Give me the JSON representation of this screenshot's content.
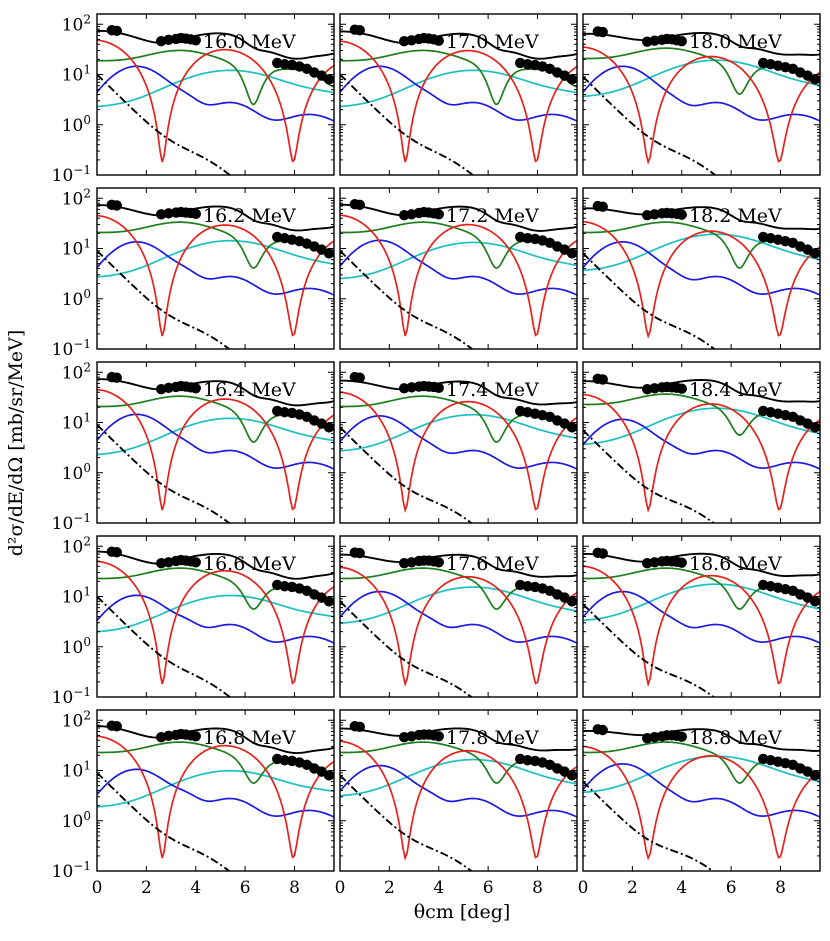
{
  "chart_data": {
    "type": "line",
    "layout": "grid of 5 rows x 3 columns",
    "xlabel": "θcm [deg]",
    "ylabel": "d²σ/dE/dΩ [mb/sr/MeV]",
    "xlim": [
      0,
      9.6
    ],
    "ylim": [
      0.1,
      160
    ],
    "yscale": "log",
    "x_ticks": [
      "0",
      "2",
      "4",
      "6",
      "8"
    ],
    "y_ticks": [
      {
        "base": "10",
        "exp": "2",
        "value": 100
      },
      {
        "base": "10",
        "exp": "1",
        "value": 10
      },
      {
        "base": "10",
        "exp": "0",
        "value": 1
      },
      {
        "base": "10",
        "exp": "−1",
        "value": 0.1
      }
    ],
    "colors": {
      "total": "#000000",
      "l0": "#e8211b",
      "l1": "#1a1ae0",
      "l2": "#1d7e1d",
      "l3": "#1cbfc2",
      "dashdot": "#000000"
    },
    "panels": [
      {
        "energy": "16.0 MeV",
        "energy_value": 16.0,
        "series": {
          "l0": 48,
          "l1": 14,
          "l2": 18,
          "l3": 2.2,
          "dashdot": 10,
          "l1_peak": 1.6
        },
        "points": [
          [
            0.6,
            76
          ],
          [
            0.8,
            74
          ],
          [
            2.6,
            46
          ],
          [
            2.9,
            49
          ],
          [
            3.2,
            51
          ],
          [
            3.4,
            53
          ],
          [
            3.6,
            52
          ],
          [
            3.8,
            50
          ],
          [
            4.0,
            48
          ],
          [
            7.3,
            17
          ],
          [
            7.6,
            16
          ],
          [
            7.9,
            15.5
          ],
          [
            8.2,
            14.5
          ],
          [
            8.5,
            13
          ],
          [
            8.8,
            11
          ],
          [
            9.1,
            9.5
          ],
          [
            9.4,
            8
          ]
        ]
      },
      {
        "energy": "17.0 MeV",
        "energy_value": 17.0,
        "series": {
          "l0": 46,
          "l1": 14,
          "l2": 18,
          "l3": 2.2,
          "dashdot": 10,
          "l1_peak": 1.6
        },
        "points": [
          [
            0.6,
            78
          ],
          [
            0.8,
            76
          ],
          [
            2.6,
            46
          ],
          [
            2.9,
            48
          ],
          [
            3.2,
            51
          ],
          [
            3.4,
            53
          ],
          [
            3.6,
            52
          ],
          [
            3.8,
            50
          ],
          [
            4.0,
            47
          ],
          [
            7.3,
            17
          ],
          [
            7.6,
            16
          ],
          [
            7.9,
            15.5
          ],
          [
            8.2,
            14.5
          ],
          [
            8.5,
            13
          ],
          [
            8.8,
            11
          ],
          [
            9.1,
            9.5
          ],
          [
            9.4,
            8
          ]
        ]
      },
      {
        "energy": "18.0 MeV",
        "energy_value": 18.0,
        "series": {
          "l0": 35,
          "l1": 14,
          "l2": 20,
          "l3": 3.5,
          "dashdot": 9,
          "l1_peak": 1.2
        },
        "points": [
          [
            0.6,
            72
          ],
          [
            0.8,
            70
          ],
          [
            2.6,
            45
          ],
          [
            2.9,
            47
          ],
          [
            3.2,
            49
          ],
          [
            3.4,
            51
          ],
          [
            3.6,
            50
          ],
          [
            3.8,
            48
          ],
          [
            4.0,
            46
          ],
          [
            7.3,
            17
          ],
          [
            7.6,
            16
          ],
          [
            7.9,
            15
          ],
          [
            8.2,
            14
          ],
          [
            8.5,
            13
          ],
          [
            8.8,
            11
          ],
          [
            9.1,
            9.5
          ],
          [
            9.4,
            8
          ]
        ]
      },
      {
        "energy": "16.2 MeV",
        "energy_value": 16.2,
        "series": {
          "l0": 45,
          "l1": 13,
          "l2": 20,
          "l3": 2.6,
          "dashdot": 9,
          "l1_peak": 1.6
        },
        "points": [
          [
            0.6,
            74
          ],
          [
            0.8,
            72
          ],
          [
            2.6,
            48
          ],
          [
            2.9,
            50
          ],
          [
            3.2,
            52
          ],
          [
            3.4,
            53
          ],
          [
            3.6,
            52
          ],
          [
            3.8,
            51
          ],
          [
            4.0,
            49
          ],
          [
            7.3,
            17
          ],
          [
            7.6,
            16
          ],
          [
            7.9,
            15
          ],
          [
            8.2,
            14
          ],
          [
            8.5,
            12.5
          ],
          [
            8.8,
            11
          ],
          [
            9.1,
            9.5
          ],
          [
            9.4,
            8
          ]
        ]
      },
      {
        "energy": "17.2 MeV",
        "energy_value": 17.2,
        "series": {
          "l0": 46,
          "l1": 14,
          "l2": 20,
          "l3": 2.4,
          "dashdot": 9,
          "l1_peak": 1.6
        },
        "points": [
          [
            0.6,
            76
          ],
          [
            0.8,
            74
          ],
          [
            2.6,
            46
          ],
          [
            2.9,
            48
          ],
          [
            3.2,
            51
          ],
          [
            3.4,
            53
          ],
          [
            3.6,
            52
          ],
          [
            3.8,
            50
          ],
          [
            4.0,
            48
          ],
          [
            7.3,
            17
          ],
          [
            7.6,
            16
          ],
          [
            7.9,
            15.5
          ],
          [
            8.2,
            14.5
          ],
          [
            8.5,
            13
          ],
          [
            8.8,
            11
          ],
          [
            9.1,
            9.5
          ],
          [
            9.4,
            8
          ]
        ]
      },
      {
        "energy": "18.2 MeV",
        "energy_value": 18.2,
        "series": {
          "l0": 34,
          "l1": 13,
          "l2": 20,
          "l3": 3.5,
          "dashdot": 8,
          "l1_peak": 1.2
        },
        "points": [
          [
            0.6,
            70
          ],
          [
            0.8,
            68
          ],
          [
            2.6,
            46
          ],
          [
            2.9,
            48
          ],
          [
            3.2,
            50
          ],
          [
            3.4,
            51
          ],
          [
            3.6,
            50
          ],
          [
            3.8,
            49
          ],
          [
            4.0,
            47
          ],
          [
            7.3,
            17
          ],
          [
            7.6,
            16
          ],
          [
            7.9,
            15
          ],
          [
            8.2,
            14
          ],
          [
            8.5,
            13
          ],
          [
            8.8,
            11
          ],
          [
            9.1,
            9.5
          ],
          [
            9.4,
            8
          ]
        ]
      },
      {
        "energy": "16.4 MeV",
        "energy_value": 16.4,
        "series": {
          "l0": 45,
          "l1": 14,
          "l2": 20,
          "l3": 2.2,
          "dashdot": 9,
          "l1_peak": 1.6
        },
        "points": [
          [
            0.6,
            80
          ],
          [
            0.8,
            78
          ],
          [
            2.6,
            46
          ],
          [
            2.9,
            49
          ],
          [
            3.2,
            51
          ],
          [
            3.4,
            53
          ],
          [
            3.6,
            52
          ],
          [
            3.8,
            50
          ],
          [
            4.0,
            48
          ],
          [
            7.3,
            17
          ],
          [
            7.6,
            16
          ],
          [
            7.9,
            15.5
          ],
          [
            8.2,
            14.5
          ],
          [
            8.5,
            13
          ],
          [
            8.8,
            11
          ],
          [
            9.1,
            9.5
          ],
          [
            9.4,
            8
          ]
        ]
      },
      {
        "energy": "17.4 MeV",
        "energy_value": 17.4,
        "series": {
          "l0": 40,
          "l1": 13,
          "l2": 20,
          "l3": 2.6,
          "dashdot": 8,
          "l1_peak": 1.4
        },
        "points": [
          [
            0.6,
            80
          ],
          [
            0.8,
            78
          ],
          [
            2.6,
            48
          ],
          [
            2.9,
            50
          ],
          [
            3.2,
            52
          ],
          [
            3.4,
            53
          ],
          [
            3.6,
            52
          ],
          [
            3.8,
            51
          ],
          [
            4.0,
            49
          ],
          [
            7.3,
            17
          ],
          [
            7.6,
            16
          ],
          [
            7.9,
            15
          ],
          [
            8.2,
            14
          ],
          [
            8.5,
            13
          ],
          [
            8.8,
            11
          ],
          [
            9.1,
            9.5
          ],
          [
            9.4,
            8
          ]
        ]
      },
      {
        "energy": "18.4 MeV",
        "energy_value": 18.4,
        "series": {
          "l0": 36,
          "l1": 11,
          "l2": 22,
          "l3": 3.5,
          "dashdot": 7,
          "l1_peak": 1.2
        },
        "points": [
          [
            0.6,
            74
          ],
          [
            0.8,
            72
          ],
          [
            2.6,
            46
          ],
          [
            2.9,
            48
          ],
          [
            3.2,
            50
          ],
          [
            3.4,
            51
          ],
          [
            3.6,
            50
          ],
          [
            3.8,
            49
          ],
          [
            4.0,
            47
          ],
          [
            7.3,
            17
          ],
          [
            7.6,
            16
          ],
          [
            7.9,
            15
          ],
          [
            8.2,
            14
          ],
          [
            8.5,
            13
          ],
          [
            8.8,
            11
          ],
          [
            9.1,
            9.5
          ],
          [
            9.4,
            8
          ]
        ]
      },
      {
        "energy": "16.6 MeV",
        "energy_value": 16.6,
        "series": {
          "l0": 50,
          "l1": 10,
          "l2": 22,
          "l3": 1.9,
          "dashdot": 10,
          "l1_peak": 1.5
        },
        "points": [
          [
            0.6,
            78
          ],
          [
            0.8,
            76
          ],
          [
            2.6,
            46
          ],
          [
            2.9,
            48
          ],
          [
            3.2,
            51
          ],
          [
            3.4,
            53
          ],
          [
            3.6,
            52
          ],
          [
            3.8,
            50
          ],
          [
            4.0,
            48
          ],
          [
            7.3,
            17
          ],
          [
            7.6,
            16
          ],
          [
            7.9,
            15.5
          ],
          [
            8.2,
            14.5
          ],
          [
            8.5,
            13
          ],
          [
            8.8,
            11
          ],
          [
            9.1,
            9.5
          ],
          [
            9.4,
            8
          ]
        ]
      },
      {
        "energy": "17.6 MeV",
        "energy_value": 17.6,
        "series": {
          "l0": 38,
          "l1": 12,
          "l2": 22,
          "l3": 2.8,
          "dashdot": 8,
          "l1_peak": 1.4
        },
        "points": [
          [
            0.6,
            75
          ],
          [
            0.8,
            73
          ],
          [
            2.6,
            46
          ],
          [
            2.9,
            48
          ],
          [
            3.2,
            51
          ],
          [
            3.4,
            52
          ],
          [
            3.6,
            52
          ],
          [
            3.8,
            50
          ],
          [
            4.0,
            48
          ],
          [
            7.3,
            17
          ],
          [
            7.6,
            16
          ],
          [
            7.9,
            15.5
          ],
          [
            8.2,
            14.5
          ],
          [
            8.5,
            13
          ],
          [
            8.8,
            11
          ],
          [
            9.1,
            9.5
          ],
          [
            9.4,
            8
          ]
        ]
      },
      {
        "energy": "18.6 MeV",
        "energy_value": 18.6,
        "series": {
          "l0": 40,
          "l1": 12,
          "l2": 22,
          "l3": 3.2,
          "dashdot": 7,
          "l1_peak": 1.3
        },
        "points": [
          [
            0.6,
            74
          ],
          [
            0.8,
            72
          ],
          [
            2.6,
            46
          ],
          [
            2.9,
            48
          ],
          [
            3.2,
            50
          ],
          [
            3.4,
            51
          ],
          [
            3.6,
            50
          ],
          [
            3.8,
            49
          ],
          [
            4.0,
            47
          ],
          [
            7.3,
            17
          ],
          [
            7.6,
            16
          ],
          [
            7.9,
            15
          ],
          [
            8.2,
            14
          ],
          [
            8.5,
            13
          ],
          [
            8.8,
            11
          ],
          [
            9.1,
            9.5
          ],
          [
            9.4,
            8
          ]
        ]
      },
      {
        "energy": "16.8 MeV",
        "energy_value": 16.8,
        "series": {
          "l0": 48,
          "l1": 10,
          "l2": 22,
          "l3": 1.8,
          "dashdot": 9,
          "l1_peak": 1.6
        },
        "points": [
          [
            0.6,
            78
          ],
          [
            0.8,
            76
          ],
          [
            2.6,
            46
          ],
          [
            2.9,
            49
          ],
          [
            3.2,
            51
          ],
          [
            3.4,
            53
          ],
          [
            3.6,
            52
          ],
          [
            3.8,
            50
          ],
          [
            4.0,
            48
          ],
          [
            7.3,
            17
          ],
          [
            7.6,
            16
          ],
          [
            7.9,
            15.5
          ],
          [
            8.2,
            14.5
          ],
          [
            8.5,
            13
          ],
          [
            8.8,
            11
          ],
          [
            9.1,
            9.5
          ],
          [
            9.4,
            8
          ]
        ]
      },
      {
        "energy": "17.8 MeV",
        "energy_value": 17.8,
        "series": {
          "l0": 38,
          "l1": 12,
          "l2": 22,
          "l3": 3.0,
          "dashdot": 8,
          "l1_peak": 1.4
        },
        "points": [
          [
            0.6,
            76
          ],
          [
            0.8,
            74
          ],
          [
            2.6,
            46
          ],
          [
            2.9,
            48
          ],
          [
            3.2,
            51
          ],
          [
            3.4,
            52
          ],
          [
            3.6,
            52
          ],
          [
            3.8,
            50
          ],
          [
            4.0,
            48
          ],
          [
            7.3,
            17
          ],
          [
            7.6,
            16
          ],
          [
            7.9,
            15.5
          ],
          [
            8.2,
            14.5
          ],
          [
            8.5,
            13
          ],
          [
            8.8,
            11
          ],
          [
            9.1,
            9.5
          ],
          [
            9.4,
            8
          ]
        ]
      },
      {
        "energy": "18.8 MeV",
        "energy_value": 18.8,
        "series": {
          "l0": 30,
          "l1": 13,
          "l2": 22,
          "l3": 3.5,
          "dashdot": 6,
          "l1_peak": 1.2
        },
        "points": [
          [
            0.6,
            66
          ],
          [
            0.8,
            64
          ],
          [
            2.6,
            44
          ],
          [
            2.9,
            46
          ],
          [
            3.2,
            48
          ],
          [
            3.4,
            50
          ],
          [
            3.6,
            50
          ],
          [
            3.8,
            49
          ],
          [
            4.0,
            47
          ],
          [
            7.3,
            17
          ],
          [
            7.6,
            16
          ],
          [
            7.9,
            15
          ],
          [
            8.2,
            14
          ],
          [
            8.5,
            13
          ],
          [
            8.8,
            11
          ],
          [
            9.1,
            9.5
          ],
          [
            9.4,
            8
          ]
        ]
      }
    ]
  }
}
